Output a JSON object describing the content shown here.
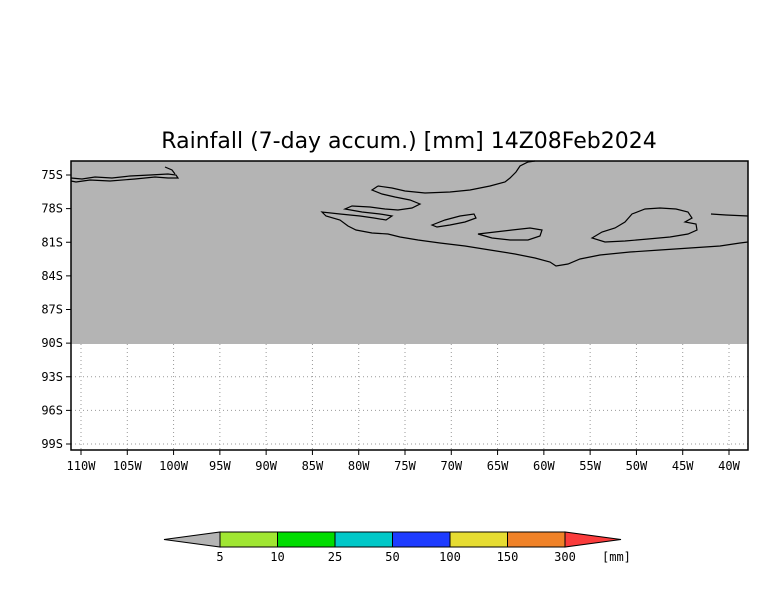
{
  "map": {
    "title": "Rainfall (7-day accum.) [mm] 14Z08Feb2024",
    "lat_labels": [
      "75S",
      "78S",
      "81S",
      "84S",
      "87S",
      "90S",
      "93S",
      "96S",
      "99S"
    ],
    "lon_labels": [
      "110W",
      "105W",
      "100W",
      "95W",
      "90W",
      "85W",
      "80W",
      "75W",
      "70W",
      "65W",
      "60W",
      "55W",
      "50W",
      "45W",
      "40W"
    ],
    "land_color": "#b4b4b4",
    "coastline_color": "#000000",
    "grid": "dotted"
  },
  "colorbar": {
    "unit": "[mm]",
    "labels": [
      "5",
      "10",
      "25",
      "50",
      "100",
      "150",
      "300"
    ],
    "colors": [
      "#b4b4b4",
      "#a0e632",
      "#00dc00",
      "#00c8c8",
      "#1e3cff",
      "#e6dc32",
      "#f08228",
      "#fa3c3c"
    ]
  }
}
